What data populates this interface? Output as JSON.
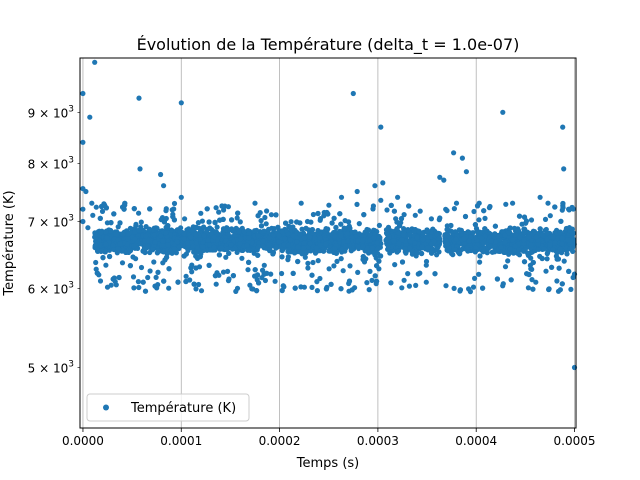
{
  "chart_data": {
    "type": "scatter",
    "title": "Évolution de la Température (delta_t = 1.0e-07)",
    "xlabel": "Temps (s)",
    "ylabel": "Température (K)",
    "xlim": [
      -3e-06,
      0.0005015
    ],
    "ylim": [
      4350,
      10200
    ],
    "yscale": "log",
    "grid": "vertical lines at major x ticks",
    "legend_position": "lower-left",
    "x_ticks": [
      {
        "value": 0.0,
        "label": "0.0000"
      },
      {
        "value": 0.0001,
        "label": "0.0001"
      },
      {
        "value": 0.0002,
        "label": "0.0002"
      },
      {
        "value": 0.0003,
        "label": "0.0003"
      },
      {
        "value": 0.0004,
        "label": "0.0004"
      },
      {
        "value": 0.0005,
        "label": "0.0005"
      }
    ],
    "y_ticks": [
      {
        "value": 5000,
        "label_base": "5 × 10",
        "label_exp": "3"
      },
      {
        "value": 6000,
        "label_base": "6 × 10",
        "label_exp": "3"
      },
      {
        "value": 7000,
        "label_base": "7 × 10",
        "label_exp": "3"
      },
      {
        "value": 8000,
        "label_base": "8 × 10",
        "label_exp": "3"
      },
      {
        "value": 9000,
        "label_base": "9 × 10",
        "label_exp": "3"
      }
    ],
    "series": [
      {
        "name": "Température (K)",
        "color": "#1f77b4",
        "marker": "circle",
        "band": {
          "x_start": 1.2e-05,
          "x_end": 0.0005,
          "gaps": [
            [
              0.000303,
              0.000308
            ],
            [
              0.000363,
              0.000368
            ]
          ],
          "core_low": 6450,
          "core_high": 6950,
          "spread_low": 5950,
          "spread_high": 7300,
          "approx_points": 5000
        },
        "points": [
          [
            0.0,
            9400
          ],
          [
            0.0,
            8400
          ],
          [
            0.0,
            7550
          ],
          [
            0.0,
            7200
          ],
          [
            0.0,
            7000
          ],
          [
            3e-06,
            7500
          ],
          [
            5e-06,
            6900
          ],
          [
            7e-06,
            8900
          ],
          [
            9e-06,
            7300
          ],
          [
            1.2e-05,
            10100
          ],
          [
            1e-05,
            7100
          ],
          [
            5.7e-05,
            9300
          ],
          [
            5.8e-05,
            7900
          ],
          [
            7.9e-05,
            7800
          ],
          [
            8.2e-05,
            7600
          ],
          [
            0.0001,
            9200
          ],
          [
            0.0001,
            7400
          ],
          [
            0.000175,
            7300
          ],
          [
            0.000222,
            7300
          ],
          [
            0.000263,
            7400
          ],
          [
            0.000275,
            9400
          ],
          [
            0.000279,
            7500
          ],
          [
            0.000297,
            7600
          ],
          [
            0.000303,
            8700
          ],
          [
            0.000305,
            7650
          ],
          [
            0.000303,
            7350
          ],
          [
            0.00032,
            7400
          ],
          [
            0.000363,
            7750
          ],
          [
            0.000367,
            7700
          ],
          [
            0.000377,
            8200
          ],
          [
            0.000386,
            8100
          ],
          [
            0.00039,
            7850
          ],
          [
            0.00038,
            7300
          ],
          [
            0.000403,
            7300
          ],
          [
            0.000427,
            9000
          ],
          [
            0.000437,
            7300
          ],
          [
            0.000465,
            7400
          ],
          [
            0.000473,
            7300
          ],
          [
            0.000488,
            8700
          ],
          [
            0.000489,
            7900
          ],
          [
            0.000494,
            7200
          ],
          [
            0.0005,
            5000
          ],
          [
            0.0005,
            6200
          ]
        ]
      }
    ]
  }
}
